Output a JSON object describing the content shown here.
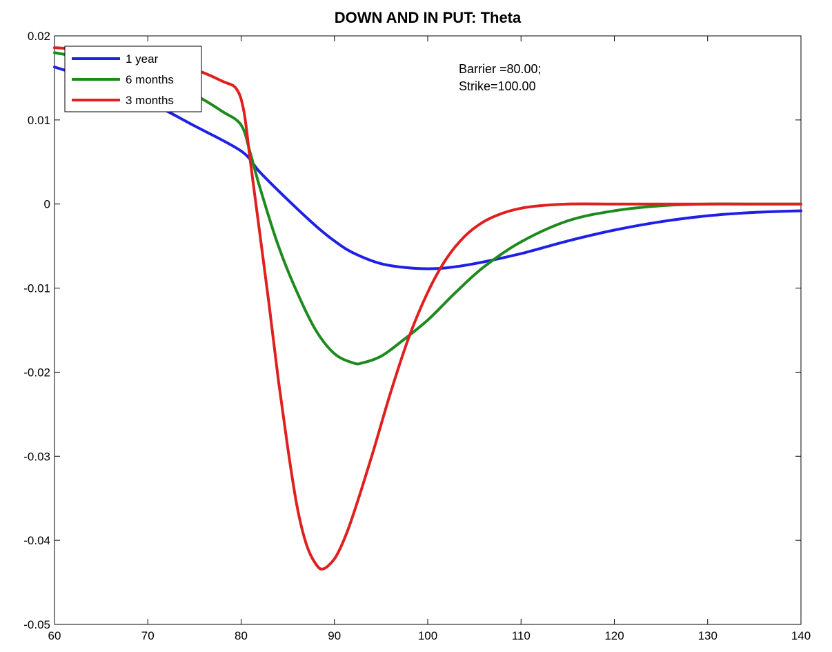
{
  "chart_data": {
    "type": "line",
    "title": "DOWN AND IN PUT: Theta",
    "xlabel": "",
    "ylabel": "",
    "xlim": [
      60,
      140
    ],
    "ylim": [
      -0.05,
      0.02
    ],
    "x_ticks": [
      60,
      70,
      80,
      90,
      100,
      110,
      120,
      130,
      140
    ],
    "x_tick_labels": [
      "60",
      "70",
      "80",
      "90",
      "100",
      "110",
      "120",
      "130",
      "140"
    ],
    "y_ticks": [
      0.02,
      0.01,
      0,
      -0.01,
      -0.02,
      -0.03,
      -0.04,
      -0.05
    ],
    "y_tick_labels": [
      "0.02",
      "0.01",
      "0",
      "-0.01",
      "-0.02",
      "-0.03",
      "-0.04",
      "-0.05"
    ],
    "grid": false,
    "legend_position": "top-left",
    "annotations": [
      "Barrier =80.00;",
      "Strike=100.00"
    ],
    "series": [
      {
        "name": "1 year",
        "color": "#1f1fe8",
        "x": [
          60,
          65,
          70,
          75,
          80,
          82,
          85,
          88,
          90,
          92,
          95,
          98,
          100,
          102,
          105,
          110,
          115,
          120,
          125,
          130,
          135,
          140
        ],
        "y": [
          0.0163,
          0.0145,
          0.0122,
          0.0093,
          0.0063,
          0.0038,
          0.0005,
          -0.0026,
          -0.0044,
          -0.0058,
          -0.0071,
          -0.0076,
          -0.0077,
          -0.0076,
          -0.0071,
          -0.0059,
          -0.0044,
          -0.0031,
          -0.0021,
          -0.0014,
          -0.001,
          -0.0008
        ]
      },
      {
        "name": "6 months",
        "color": "#1e8a1e",
        "x": [
          60,
          65,
          70,
          75,
          78,
          80,
          81,
          82,
          84,
          86,
          88,
          90,
          92,
          93,
          95,
          97,
          100,
          103,
          106,
          110,
          115,
          120,
          125,
          130,
          135,
          140
        ],
        "y": [
          0.018,
          0.017,
          0.0155,
          0.013,
          0.011,
          0.0094,
          0.006,
          0.002,
          -0.005,
          -0.0105,
          -0.015,
          -0.0178,
          -0.0189,
          -0.0189,
          -0.0181,
          -0.0165,
          -0.0138,
          -0.0105,
          -0.0075,
          -0.0045,
          -0.002,
          -0.0008,
          -0.0002,
          0.0,
          0.0,
          0.0
        ]
      },
      {
        "name": "3 months",
        "color": "#e01f1f",
        "x": [
          60,
          65,
          70,
          75,
          78,
          79.5,
          80.3,
          81,
          82,
          83,
          84,
          85,
          86,
          87,
          88,
          88.8,
          90,
          91,
          92,
          94,
          96,
          98,
          100,
          102,
          104,
          106,
          108,
          110,
          112,
          115,
          120,
          125,
          130,
          135,
          140
        ],
        "y": [
          0.0186,
          0.0182,
          0.0174,
          0.016,
          0.0146,
          0.0137,
          0.011,
          0.005,
          -0.0035,
          -0.012,
          -0.021,
          -0.029,
          -0.036,
          -0.0405,
          -0.0428,
          -0.0434,
          -0.0422,
          -0.04,
          -0.037,
          -0.03,
          -0.0225,
          -0.0158,
          -0.0105,
          -0.0065,
          -0.0038,
          -0.0021,
          -0.0011,
          -0.0005,
          -0.0002,
          0.0,
          0.0,
          0.0,
          0.0,
          0.0,
          0.0
        ]
      }
    ]
  }
}
